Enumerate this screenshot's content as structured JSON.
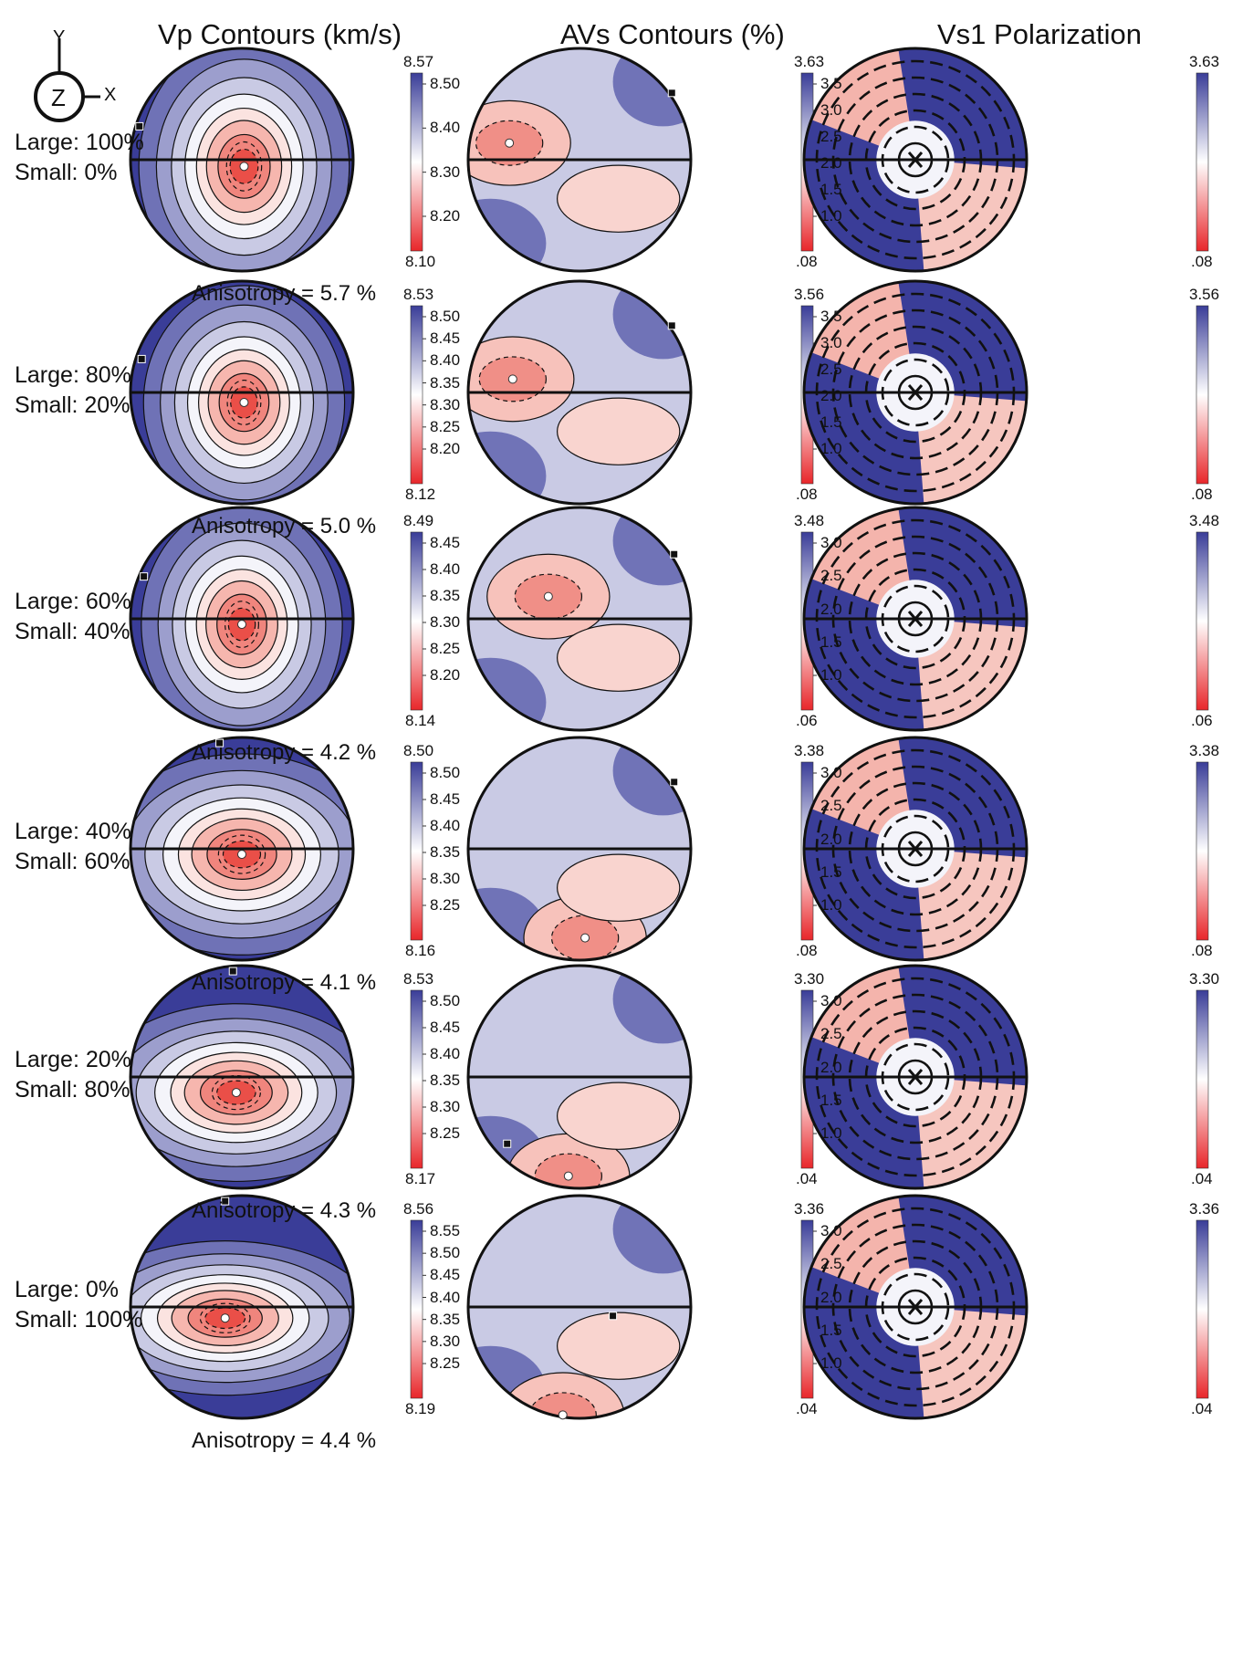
{
  "column_titles": [
    "Vp  Contours (km/s)",
    "AVs Contours (%)",
    "Vs1 Polarization"
  ],
  "axis_icon": {
    "y_label": "Y",
    "z_label": "Z",
    "x_label": "X"
  },
  "colors": {
    "low": "#e8262a",
    "mid": "#ffffff",
    "high": "#3a3d98",
    "line": "#111111"
  },
  "rows": [
    {
      "large": "Large: 100%",
      "small": "Small: 0%",
      "anisotropy": "Anisotropy =  5.7 %",
      "vp": {
        "max": "8.57",
        "min": "8.10",
        "ticks": [
          "8.50",
          "8.40",
          "8.30",
          "8.20"
        ],
        "min_center": [
          0.02,
          -0.06
        ],
        "max_marker": [
          -0.92,
          0.3
        ],
        "aspect": [
          0.45,
          0.55
        ]
      },
      "avs": {
        "max": "3.63",
        "min": ".08",
        "ticks": [
          "3.5",
          "3.0",
          "2.5",
          "2.0",
          "1.5",
          "1.0"
        ],
        "min_center": [
          -0.63,
          0.15
        ],
        "max_marker": [
          0.83,
          0.6
        ]
      },
      "vs1": {
        "max": "3.63",
        "min": ".08"
      }
    },
    {
      "large": "Large: 80%",
      "small": "Small: 20%",
      "anisotropy": "Anisotropy = 5.0 %",
      "vp": {
        "max": "8.53",
        "min": "8.12",
        "ticks": [
          "8.50",
          "8.45",
          "8.40",
          "8.35",
          "8.30",
          "8.25",
          "8.20"
        ],
        "min_center": [
          0.02,
          -0.09
        ],
        "max_marker": [
          -0.9,
          0.3
        ],
        "aspect": [
          0.43,
          0.5
        ]
      },
      "avs": {
        "max": "3.56",
        "min": ".08",
        "ticks": [
          "3.5",
          "3.0",
          "2.5",
          "2.0",
          "1.5",
          "1.0"
        ],
        "min_center": [
          -0.6,
          0.12
        ],
        "max_marker": [
          0.83,
          0.6
        ]
      },
      "vs1": {
        "max": "3.56",
        "min": ".08"
      }
    },
    {
      "large": "Large: 60%",
      "small": "Small: 40%",
      "anisotropy": "Anisotropy = 4.2 %",
      "vp": {
        "max": "8.49",
        "min": "8.14",
        "ticks": [
          "8.45",
          "8.40",
          "8.35",
          "8.30",
          "8.25",
          "8.20"
        ],
        "min_center": [
          0.0,
          -0.05
        ],
        "max_marker": [
          -0.88,
          0.38
        ],
        "aspect": [
          0.43,
          0.52
        ]
      },
      "avs": {
        "max": "3.48",
        "min": ".06",
        "ticks": [
          "3.0",
          "2.5",
          "2.0",
          "1.5",
          "1.0"
        ],
        "min_center": [
          -0.28,
          0.2
        ],
        "max_marker": [
          0.85,
          0.58
        ]
      },
      "vs1": {
        "max": "3.48",
        "min": ".06"
      }
    },
    {
      "large": "Large: 40%",
      "small": "Small: 60%",
      "anisotropy": "Anisotropy = 4.1 %",
      "vp": {
        "max": "8.50",
        "min": "8.16",
        "ticks": [
          "8.50",
          "8.45",
          "8.40",
          "8.35",
          "8.30",
          "8.25"
        ],
        "min_center": [
          0.0,
          -0.05
        ],
        "max_marker": [
          -0.2,
          0.95
        ],
        "aspect": [
          0.6,
          0.43
        ]
      },
      "avs": {
        "max": "3.38",
        "min": ".08",
        "ticks": [
          "3.0",
          "2.5",
          "2.0",
          "1.5",
          "1.0"
        ],
        "min_center": [
          0.05,
          -0.8
        ],
        "max_marker": [
          0.85,
          0.6
        ]
      },
      "vs1": {
        "max": "3.38",
        "min": ".08"
      }
    },
    {
      "large": "Large: 20%",
      "small": "Small: 80%",
      "anisotropy": "Anisotropy = 4.3 %",
      "vp": {
        "max": "8.53",
        "min": "8.17",
        "ticks": [
          "8.50",
          "8.45",
          "8.40",
          "8.35",
          "8.30",
          "8.25"
        ],
        "min_center": [
          -0.05,
          -0.14
        ],
        "max_marker": [
          -0.08,
          0.95
        ],
        "aspect": [
          0.62,
          0.38
        ]
      },
      "avs": {
        "max": "3.30",
        "min": ".04",
        "ticks": [
          "3.0",
          "2.5",
          "2.0",
          "1.5",
          "1.0"
        ],
        "min_center": [
          -0.1,
          -0.89
        ],
        "max_marker": [
          -0.65,
          -0.6
        ]
      },
      "vs1": {
        "max": "3.30",
        "min": ".04"
      }
    },
    {
      "large": "Large: 0%",
      "small": "Small: 100%",
      "anisotropy": "Anisotropy = 4.4 %",
      "vp": {
        "max": "8.56",
        "min": "8.19",
        "ticks": [
          "8.55",
          "8.50",
          "8.45",
          "8.40",
          "8.35",
          "8.30",
          "8.25"
        ],
        "min_center": [
          -0.15,
          -0.1
        ],
        "max_marker": [
          -0.15,
          0.95
        ],
        "aspect": [
          0.64,
          0.33
        ]
      },
      "avs": {
        "max": "3.36",
        "min": ".04",
        "ticks": [
          "3.0",
          "2.5",
          "2.0",
          "1.5",
          "1.0"
        ],
        "min_center": [
          -0.15,
          -0.97
        ],
        "max_marker": [
          0.3,
          -0.08
        ]
      },
      "vs1": {
        "max": "3.36",
        "min": ".04"
      }
    }
  ]
}
